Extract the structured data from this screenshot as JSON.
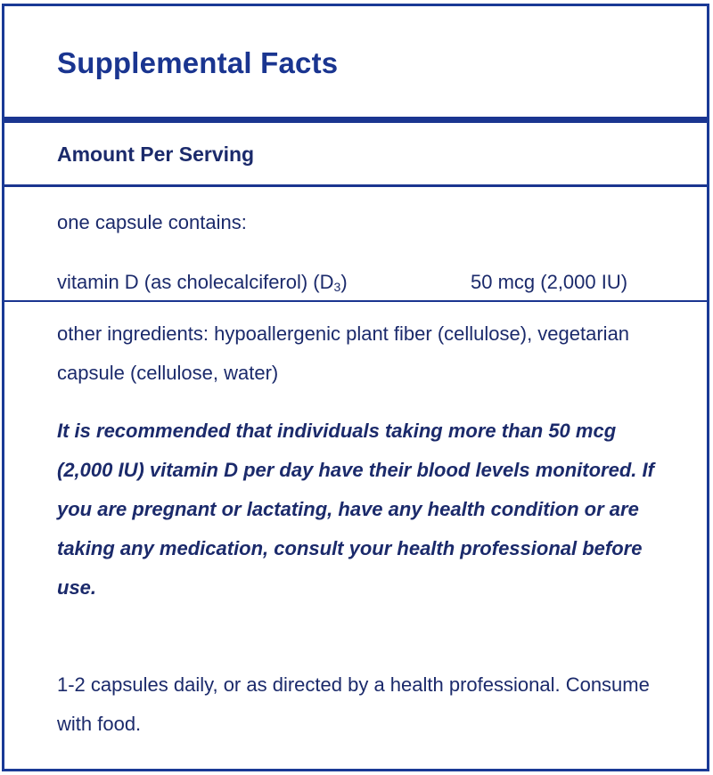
{
  "label": {
    "title": "Supplemental Facts",
    "amount_per_serving": "Amount Per Serving",
    "serving_description": "one capsule contains:",
    "nutrients": [
      {
        "name": "vitamin D (as cholecalciferol) (D",
        "name_subscript": "3",
        "name_suffix": ")",
        "amount": "50 mcg (2,000 IU)"
      }
    ],
    "other_ingredients": "other ingredients: hypoallergenic plant fiber (cellulose), vegetarian capsule (cellulose, water)",
    "warning": "It is recommended that individuals taking more than 50 mcg (2,000 IU) vitamin D per day have their blood levels monitored. If you are pregnant or lactating, have any health condition or are taking any medication, consult your health professional before use.",
    "directions": "1-2 capsules daily, or as directed by a health professional. Consume with food."
  },
  "colors": {
    "border": "#1a3a96",
    "title": "#1a3590",
    "text": "#1b2a6b",
    "background": "#ffffff"
  }
}
